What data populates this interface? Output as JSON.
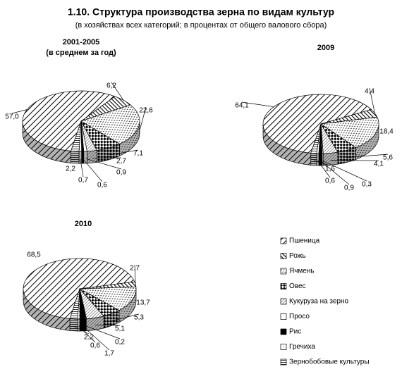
{
  "title": "1.10. Структура производства зерна по видам культур",
  "subtitle": "(в хозяйствах всех категорий; в процентах от общего валового сбора)",
  "categories": [
    "Пшеница",
    "Рожь",
    "Ячмень",
    "Овес",
    "Кукуруза на зерно",
    "Просо",
    "Рис",
    "Гречиха",
    "Зернобобовые культуры"
  ],
  "chart_data": [
    {
      "type": "pie",
      "title": "2001-2005",
      "subtitle": "(в среднем за год)",
      "values": [
        57.0,
        6.2,
        22.6,
        7.1,
        2.7,
        0.9,
        0.6,
        0.7,
        2.2
      ],
      "value_labels": [
        "57,0",
        "6,2",
        "22,6",
        "7,1",
        "2,7",
        "0,9",
        "0,6",
        "0,7",
        "2,2"
      ]
    },
    {
      "type": "pie",
      "title": "2009",
      "values": [
        64.1,
        4.4,
        18.4,
        5.6,
        4.1,
        0.3,
        0.9,
        0.6,
        1.6
      ],
      "value_labels": [
        "64,1",
        "4,4",
        "18,4",
        "5,6",
        "4,1",
        "0,3",
        "0,9",
        "0,6",
        "1,6"
      ]
    },
    {
      "type": "pie",
      "title": "2010",
      "values": [
        68.5,
        2.7,
        13.7,
        5.3,
        5.1,
        0.2,
        1.7,
        0.6,
        2.2
      ],
      "value_labels": [
        "68,5",
        "2,7",
        "13,7",
        "5,3",
        "5,1",
        "0,2",
        "1,7",
        "0,6",
        "2,2"
      ]
    }
  ]
}
